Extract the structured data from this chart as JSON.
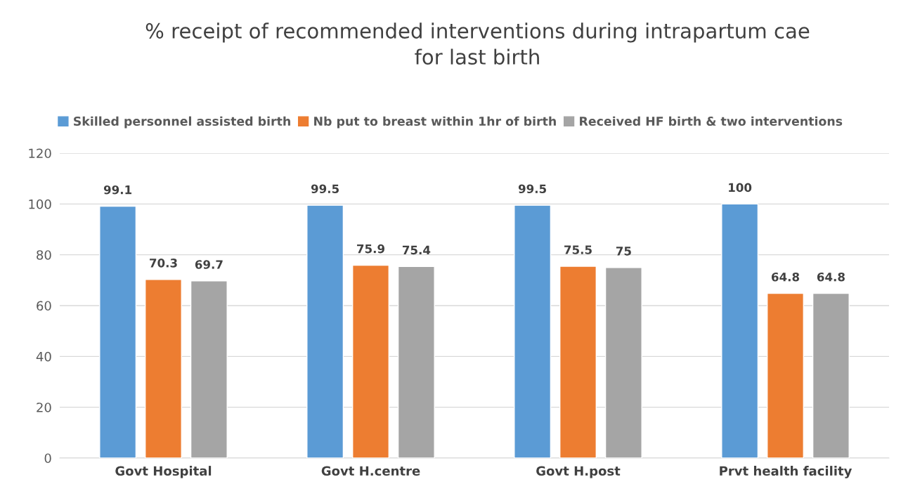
{
  "chart_data": {
    "type": "bar",
    "title": "% receipt of recommended interventions during intrapartum cae\nfor last birth",
    "categories": [
      "Govt Hospital",
      "Govt H.centre",
      "Govt H.post",
      "Prvt health facility"
    ],
    "series": [
      {
        "name": "Skilled personnel assisted birth",
        "color": "#5b9bd5",
        "values": [
          99.1,
          99.5,
          99.5,
          100
        ]
      },
      {
        "name": "Nb put to breast within 1hr of birth",
        "color": "#ed7d31",
        "values": [
          70.3,
          75.9,
          75.5,
          64.8
        ]
      },
      {
        "name": "Received HF birth & two interventions",
        "color": "#a5a5a5",
        "values": [
          69.7,
          75.4,
          75,
          64.8
        ]
      }
    ],
    "ylim": [
      0,
      120
    ],
    "yticks": [
      0,
      20,
      40,
      60,
      80,
      100,
      120
    ],
    "grid": "y",
    "legend": "top",
    "data_labels": true
  }
}
